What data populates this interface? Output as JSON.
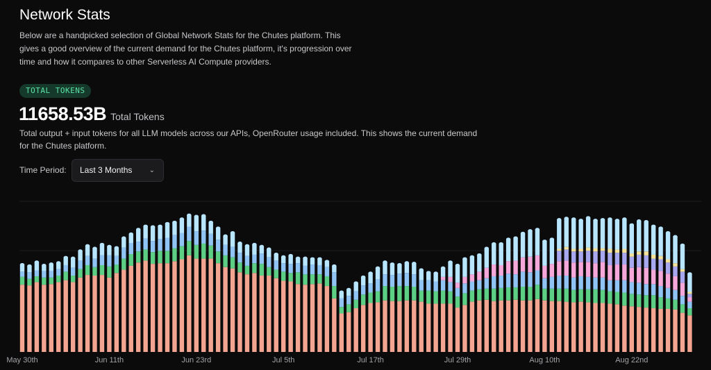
{
  "header": {
    "title": "Network Stats",
    "intro": "Below are a handpicked selection of Global Network Stats for the Chutes platform. This gives a good overview of the current demand for the Chutes platform, it's progression over time and how it compares to other Serverless AI Compute providers."
  },
  "metric": {
    "badge": "TOTAL TOKENS",
    "value": "11658.53B",
    "unit": "Total Tokens",
    "description": "Total output + input tokens for all LLM models across our APIs, OpenRouter usage included. This shows the current demand for the Chutes platform."
  },
  "filter": {
    "label": "Time Period:",
    "selected": "Last 3 Months"
  },
  "chart_data": {
    "type": "bar",
    "stacked": true,
    "title": "",
    "xlabel": "",
    "ylabel": "",
    "grid": true,
    "legend": "none",
    "colors": [
      "#f4a592",
      "#5dcf84",
      "#8fc4f5",
      "#f5a8d9",
      "#a8a8f0",
      "#f5e39a",
      "#b8e5ff"
    ],
    "x_ticks": [
      {
        "label": "May 30th",
        "index": 0
      },
      {
        "label": "Jun 11th",
        "index": 12
      },
      {
        "label": "Jun 23rd",
        "index": 24
      },
      {
        "label": "Jul 5th",
        "index": 36
      },
      {
        "label": "Jul 17th",
        "index": 48
      },
      {
        "label": "Jul 29th",
        "index": 60
      },
      {
        "label": "Aug 10th",
        "index": 72
      },
      {
        "label": "Aug 22nd",
        "index": 84
      }
    ],
    "bars": [
      [
        103,
        12,
        8,
        0,
        0,
        0,
        11
      ],
      [
        102,
        10,
        10,
        0,
        0,
        0,
        10
      ],
      [
        107,
        9,
        9,
        0,
        0,
        0,
        13
      ],
      [
        103,
        11,
        10,
        0,
        0,
        0,
        9
      ],
      [
        104,
        10,
        10,
        0,
        0,
        0,
        11
      ],
      [
        107,
        10,
        10,
        0,
        0,
        0,
        10
      ],
      [
        110,
        13,
        10,
        0,
        0,
        0,
        12
      ],
      [
        107,
        10,
        12,
        0,
        0,
        0,
        15
      ],
      [
        114,
        13,
        13,
        0,
        0,
        0,
        15
      ],
      [
        118,
        15,
        14,
        0,
        0,
        0,
        16
      ],
      [
        117,
        13,
        13,
        0,
        0,
        0,
        16
      ],
      [
        118,
        15,
        15,
        0,
        0,
        0,
        17
      ],
      [
        114,
        17,
        17,
        0,
        0,
        0,
        14
      ],
      [
        121,
        13,
        13,
        0,
        0,
        0,
        13
      ],
      [
        126,
        17,
        17,
        0,
        0,
        0,
        15
      ],
      [
        132,
        18,
        17,
        0,
        0,
        0,
        14
      ],
      [
        137,
        17,
        15,
        0,
        0,
        0,
        19
      ],
      [
        140,
        17,
        17,
        0,
        0,
        0,
        19
      ],
      [
        135,
        18,
        17,
        0,
        0,
        0,
        22
      ],
      [
        136,
        19,
        18,
        0,
        0,
        0,
        20
      ],
      [
        136,
        19,
        20,
        0,
        0,
        0,
        22
      ],
      [
        139,
        20,
        20,
        0,
        0,
        0,
        20
      ],
      [
        142,
        20,
        20,
        0,
        0,
        0,
        22
      ],
      [
        148,
        22,
        22,
        0,
        0,
        0,
        18
      ],
      [
        143,
        21,
        21,
        0,
        0,
        0,
        23
      ],
      [
        143,
        23,
        20,
        0,
        0,
        0,
        23
      ],
      [
        143,
        20,
        18,
        0,
        0,
        0,
        18
      ],
      [
        136,
        18,
        18,
        0,
        0,
        0,
        18
      ],
      [
        130,
        18,
        16,
        0,
        0,
        0,
        14
      ],
      [
        128,
        17,
        16,
        0,
        0,
        0,
        22
      ],
      [
        122,
        15,
        15,
        0,
        0,
        0,
        15
      ],
      [
        119,
        13,
        15,
        0,
        0,
        0,
        16
      ],
      [
        121,
        15,
        13,
        0,
        0,
        0,
        16
      ],
      [
        117,
        18,
        16,
        0,
        0,
        0,
        11
      ],
      [
        117,
        13,
        15,
        0,
        0,
        0,
        13
      ],
      [
        113,
        13,
        14,
        0,
        0,
        0,
        10
      ],
      [
        109,
        14,
        13,
        0,
        0,
        0,
        10
      ],
      [
        108,
        13,
        14,
        0,
        0,
        0,
        13
      ],
      [
        104,
        18,
        14,
        0,
        0,
        0,
        8
      ],
      [
        103,
        16,
        13,
        0,
        0,
        0,
        12
      ],
      [
        104,
        15,
        15,
        0,
        0,
        0,
        9
      ],
      [
        105,
        14,
        14,
        0,
        0,
        0,
        10
      ],
      [
        101,
        15,
        14,
        0,
        0,
        0,
        9
      ],
      [
        82,
        19,
        21,
        0,
        0,
        0,
        10
      ],
      [
        59,
        10,
        13,
        0,
        0,
        0,
        10
      ],
      [
        61,
        12,
        13,
        0,
        0,
        0,
        10
      ],
      [
        67,
        13,
        13,
        0,
        0,
        0,
        13
      ],
      [
        72,
        16,
        14,
        0,
        0,
        0,
        13
      ],
      [
        75,
        16,
        14,
        0,
        0,
        0,
        16
      ],
      [
        76,
        17,
        18,
        0,
        0,
        0,
        18
      ],
      [
        79,
        22,
        18,
        0,
        0,
        0,
        19
      ],
      [
        78,
        22,
        18,
        0,
        0,
        0,
        17
      ],
      [
        78,
        23,
        19,
        0,
        0,
        0,
        14
      ],
      [
        79,
        22,
        20,
        0,
        0,
        0,
        16
      ],
      [
        79,
        21,
        19,
        0,
        0,
        0,
        17
      ],
      [
        77,
        17,
        16,
        0,
        0,
        0,
        16
      ],
      [
        74,
        20,
        16,
        0,
        0,
        0,
        12
      ],
      [
        74,
        19,
        15,
        0,
        0,
        0,
        13
      ],
      [
        74,
        20,
        16,
        5,
        0,
        0,
        14
      ],
      [
        74,
        19,
        14,
        8,
        0,
        0,
        23
      ],
      [
        68,
        17,
        13,
        8,
        0,
        0,
        27
      ],
      [
        72,
        18,
        15,
        10,
        0,
        0,
        28
      ],
      [
        77,
        17,
        14,
        11,
        0,
        0,
        27
      ],
      [
        79,
        17,
        14,
        13,
        0,
        0,
        26
      ],
      [
        80,
        17,
        16,
        16,
        0,
        0,
        30
      ],
      [
        78,
        19,
        19,
        18,
        0,
        0,
        32
      ],
      [
        79,
        19,
        19,
        16,
        0,
        0,
        33
      ],
      [
        79,
        20,
        21,
        19,
        0,
        0,
        34
      ],
      [
        80,
        19,
        20,
        21,
        0,
        0,
        35
      ],
      [
        79,
        21,
        23,
        22,
        0,
        0,
        37
      ],
      [
        79,
        21,
        22,
        24,
        0,
        0,
        40
      ],
      [
        81,
        22,
        22,
        23,
        0,
        0,
        40
      ],
      [
        79,
        18,
        16,
        19,
        0,
        0,
        38
      ],
      [
        78,
        19,
        18,
        20,
        0,
        0,
        38
      ],
      [
        78,
        19,
        20,
        22,
        16,
        3,
        45
      ],
      [
        77,
        20,
        20,
        23,
        17,
        4,
        44
      ],
      [
        76,
        19,
        19,
        23,
        17,
        4,
        46
      ],
      [
        77,
        19,
        20,
        22,
        16,
        4,
        44
      ],
      [
        76,
        20,
        19,
        23,
        17,
        5,
        46
      ],
      [
        75,
        21,
        18,
        22,
        18,
        5,
        43
      ],
      [
        75,
        20,
        19,
        24,
        17,
        4,
        44
      ],
      [
        74,
        19,
        17,
        23,
        19,
        6,
        46
      ],
      [
        73,
        19,
        18,
        24,
        18,
        5,
        45
      ],
      [
        71,
        20,
        19,
        24,
        18,
        6,
        46
      ],
      [
        70,
        19,
        18,
        22,
        17,
        5,
        44
      ],
      [
        69,
        19,
        18,
        24,
        19,
        5,
        47
      ],
      [
        68,
        19,
        17,
        25,
        19,
        6,
        46
      ],
      [
        67,
        20,
        17,
        22,
        17,
        6,
        44
      ],
      [
        66,
        18,
        17,
        23,
        18,
        5,
        43
      ],
      [
        66,
        16,
        16,
        22,
        17,
        5,
        41
      ],
      [
        65,
        15,
        15,
        21,
        15,
        5,
        41
      ],
      [
        60,
        13,
        13,
        20,
        17,
        4,
        37
      ],
      [
        56,
        11,
        10,
        7,
        5,
        3,
        28
      ]
    ]
  }
}
